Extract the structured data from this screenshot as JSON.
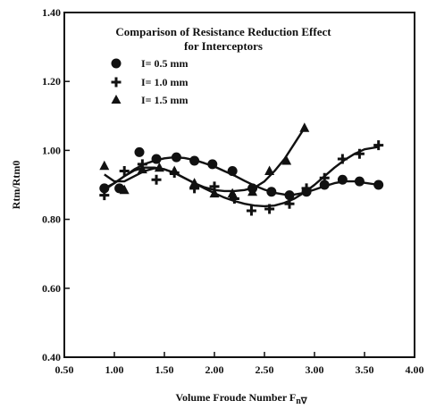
{
  "chart_data": {
    "type": "scatter",
    "title_line1": "Comparison of Resistance Reduction Effect",
    "title_line2": "for Interceptors",
    "xlabel_main": "Volume Froude Number F",
    "xlabel_sub": "n∇",
    "ylabel": "Rtm/Rtm0",
    "xlim": [
      0.5,
      4.0
    ],
    "ylim": [
      0.4,
      1.4
    ],
    "xticks": [
      "0.50",
      "1.00",
      "1.50",
      "2.00",
      "2.50",
      "3.00",
      "3.50",
      "4.00"
    ],
    "xtick_values": [
      0.5,
      1.0,
      1.5,
      2.0,
      2.5,
      3.0,
      3.5,
      4.0
    ],
    "yticks": [
      "0.40",
      "0.60",
      "0.80",
      "1.00",
      "1.20",
      "1.40"
    ],
    "ytick_values": [
      0.4,
      0.6,
      0.8,
      1.0,
      1.2,
      1.4
    ],
    "grid": false,
    "legend_position": "top-left",
    "series": [
      {
        "name": "I= 0.5 mm",
        "marker": "circle",
        "x": [
          0.9,
          1.05,
          1.25,
          1.42,
          1.62,
          1.8,
          1.98,
          2.18,
          2.38,
          2.57,
          2.75,
          2.92,
          3.1,
          3.28,
          3.45,
          3.64
        ],
        "y": [
          0.89,
          0.89,
          0.995,
          0.975,
          0.98,
          0.97,
          0.96,
          0.94,
          0.89,
          0.88,
          0.87,
          0.88,
          0.9,
          0.915,
          0.91,
          0.9
        ],
        "fit_x": [
          0.9,
          1.0,
          1.1,
          1.2,
          1.3,
          1.4,
          1.5,
          1.6,
          1.7,
          1.8,
          1.9,
          2.0,
          2.1,
          2.2,
          2.3,
          2.4,
          2.5,
          2.6,
          2.7,
          2.8,
          2.9,
          3.0,
          3.1,
          3.2,
          3.3,
          3.4,
          3.5,
          3.64
        ],
        "fit_y": [
          0.89,
          0.905,
          0.925,
          0.945,
          0.96,
          0.97,
          0.977,
          0.98,
          0.978,
          0.972,
          0.963,
          0.953,
          0.94,
          0.927,
          0.912,
          0.898,
          0.886,
          0.877,
          0.872,
          0.872,
          0.877,
          0.886,
          0.896,
          0.905,
          0.91,
          0.91,
          0.906,
          0.9
        ]
      },
      {
        "name": "I= 1.0 mm",
        "marker": "plus",
        "x": [
          0.9,
          1.1,
          1.28,
          1.42,
          1.6,
          1.8,
          2.0,
          2.2,
          2.37,
          2.55,
          2.75,
          2.92,
          3.1,
          3.28,
          3.45,
          3.64
        ],
        "y": [
          0.87,
          0.94,
          0.96,
          0.915,
          0.935,
          0.89,
          0.895,
          0.86,
          0.825,
          0.83,
          0.845,
          0.89,
          0.92,
          0.975,
          0.99,
          1.015
        ],
        "fit_x": [
          0.9,
          1.0,
          1.1,
          1.2,
          1.3,
          1.4,
          1.5,
          1.6,
          1.7,
          1.8,
          1.9,
          2.0,
          2.1,
          2.2,
          2.3,
          2.4,
          2.5,
          2.6,
          2.7,
          2.8,
          2.9,
          3.0,
          3.1,
          3.2,
          3.3,
          3.4,
          3.5,
          3.64
        ],
        "fit_y": [
          0.885,
          0.905,
          0.925,
          0.942,
          0.95,
          0.95,
          0.945,
          0.935,
          0.92,
          0.905,
          0.89,
          0.876,
          0.863,
          0.853,
          0.845,
          0.84,
          0.838,
          0.84,
          0.848,
          0.86,
          0.878,
          0.9,
          0.925,
          0.95,
          0.972,
          0.99,
          1.003,
          1.01
        ]
      },
      {
        "name": "I= 1.5 mm",
        "marker": "triangle",
        "x": [
          0.9,
          1.1,
          1.28,
          1.45,
          1.6,
          1.8,
          2.0,
          2.18,
          2.38,
          2.55,
          2.72,
          2.9
        ],
        "y": [
          0.955,
          0.885,
          0.945,
          0.95,
          0.94,
          0.905,
          0.875,
          0.875,
          0.88,
          0.94,
          0.97,
          1.065
        ],
        "fit_x": [
          0.9,
          1.0,
          1.1,
          1.2,
          1.3,
          1.4,
          1.5,
          1.6,
          1.7,
          1.8,
          1.9,
          2.0,
          2.1,
          2.2,
          2.3,
          2.4,
          2.5,
          2.6,
          2.7,
          2.8,
          2.9
        ],
        "fit_y": [
          0.93,
          0.91,
          0.91,
          0.925,
          0.94,
          0.948,
          0.945,
          0.935,
          0.92,
          0.905,
          0.893,
          0.885,
          0.882,
          0.882,
          0.885,
          0.892,
          0.91,
          0.94,
          0.975,
          1.02,
          1.065
        ]
      }
    ]
  }
}
